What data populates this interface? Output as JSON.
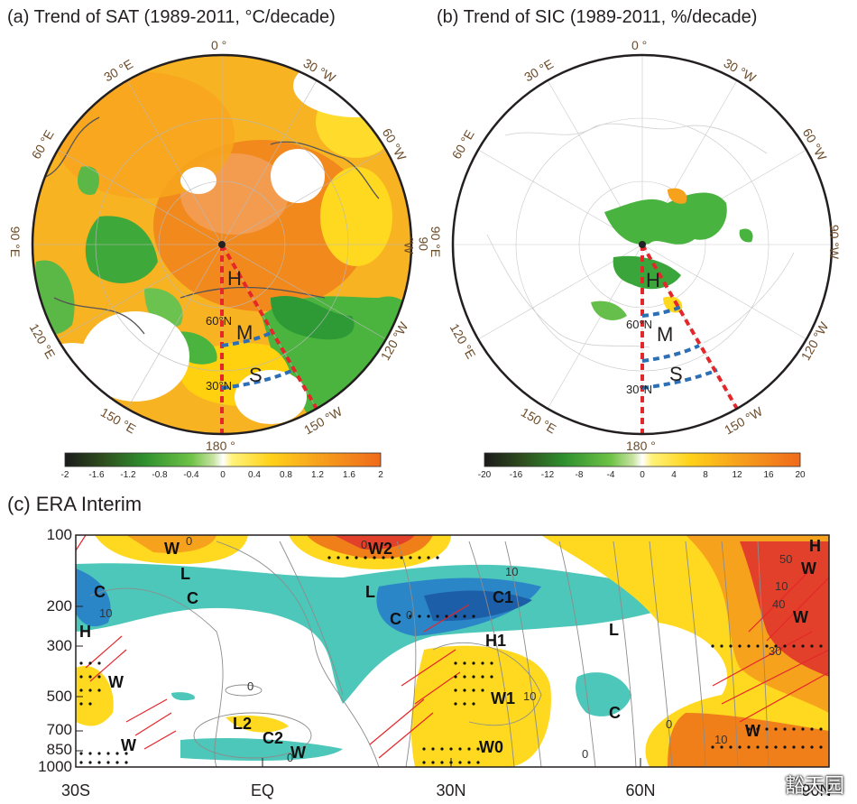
{
  "panel_a": {
    "title": "(a) Trend of SAT (1989-2011, °C/decade)",
    "lon_labels": [
      "0 °",
      "30 °E",
      "30 °W",
      "60 °E",
      "60 °W",
      "90 °E",
      "90 °W",
      "120 °E",
      "120 °W",
      "150 °E",
      "150 °W",
      "180 °"
    ],
    "lat_labels": [
      "60°N",
      "30°N"
    ],
    "region_labels": [
      "H",
      "M",
      "S"
    ],
    "colorbar_ticks": [
      "-2",
      "-1.6",
      "-1.2",
      "-0.8",
      "-0.4",
      "0",
      "0.4",
      "0.8",
      "1.2",
      "1.6",
      "2"
    ]
  },
  "panel_b": {
    "title": "(b) Trend of SIC (1989-2011, %/decade)",
    "lon_labels": [
      "0 °",
      "30 °E",
      "30 °W",
      "60 °E",
      "60 °W",
      "90 °E",
      "90 °W",
      "120 °E",
      "120 °W",
      "150 °E",
      "150 °W",
      "180 °"
    ],
    "lat_labels": [
      "60°N",
      "30°N"
    ],
    "region_labels": [
      "H",
      "M",
      "S"
    ],
    "colorbar_ticks": [
      "-20",
      "-16",
      "-12",
      "-8",
      "-4",
      "0",
      "4",
      "8",
      "12",
      "16",
      "20"
    ]
  },
  "panel_c": {
    "title": "(c)  ERA Interim",
    "y_ticks": [
      "100",
      "200",
      "300",
      "500",
      "700",
      "850",
      "1000"
    ],
    "x_ticks": [
      "30S",
      "EQ",
      "30N",
      "60N",
      "90N"
    ],
    "annotations": [
      "W",
      "L",
      "C",
      "C",
      "H",
      "W",
      "W",
      "W2",
      "L2",
      "C2",
      "W",
      "L",
      "C",
      "C1",
      "H1",
      "W1",
      "W0",
      "L",
      "C",
      "H",
      "W",
      "W",
      "W"
    ],
    "contour_labels": [
      "0",
      "10",
      "0",
      "0",
      "10",
      "0",
      "0",
      "10",
      "0",
      "10",
      "50",
      "40",
      "30",
      "10",
      "0"
    ]
  },
  "watermark": "豁天园",
  "colors": {
    "warm_orange": "#f07f1a",
    "yellow": "#ffd400",
    "green": "#3cab3a",
    "cyan": "#3bbfb5",
    "blue": "#2d7fc1",
    "red_dash": "#e5262b",
    "blue_dash": "#2c6fb4"
  }
}
